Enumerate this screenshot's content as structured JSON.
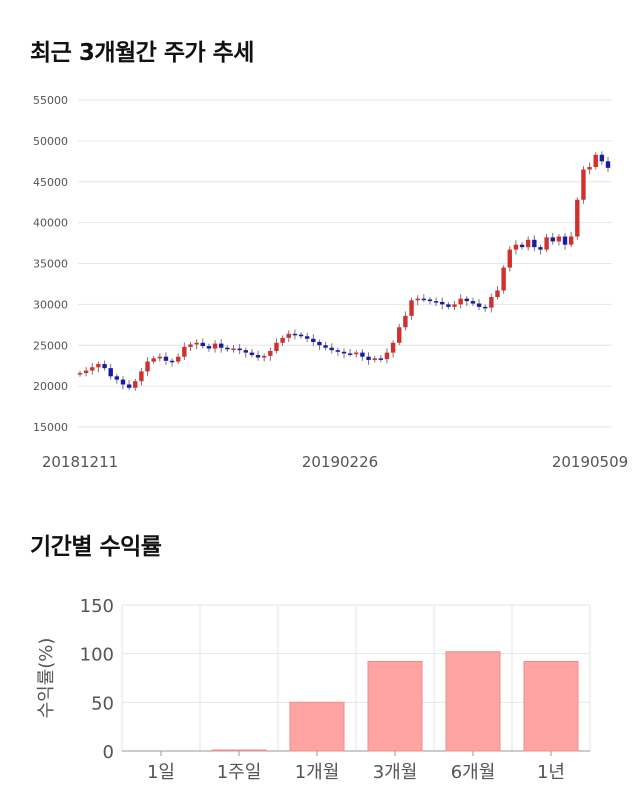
{
  "sections": {
    "price_title": "최근 3개월간 주가 추세",
    "return_title": "기간별 수익률"
  },
  "colors": {
    "up": "#d32f2f",
    "down": "#1a1aa8",
    "bar": "#ffa3a3",
    "bar_border": "#e88d8d",
    "grid": "#e6e6e6"
  },
  "chart_data": [
    {
      "type": "candlestick",
      "title": "최근 3개월간 주가 추세",
      "ylim": [
        15000,
        55000
      ],
      "y_ticks": [
        15000,
        20000,
        25000,
        30000,
        35000,
        40000,
        45000,
        50000,
        55000
      ],
      "x_tick_labels": [
        "20181211",
        "20190226",
        "20190509"
      ],
      "grid": true,
      "approx_close_series": [
        21600,
        21900,
        22300,
        22700,
        22200,
        21200,
        20800,
        20200,
        19800,
        20600,
        21800,
        23000,
        23400,
        23600,
        23100,
        23000,
        23600,
        24800,
        25100,
        25300,
        24900,
        24600,
        25200,
        24700,
        24500,
        24600,
        24400,
        24100,
        23800,
        23500,
        23700,
        24300,
        25300,
        25900,
        26400,
        26300,
        26100,
        25800,
        25400,
        25000,
        24700,
        24400,
        24200,
        24000,
        23900,
        24100,
        23600,
        23200,
        23400,
        23300,
        24100,
        25300,
        27200,
        28600,
        30500,
        30700,
        30600,
        30400,
        30300,
        30000,
        29700,
        30000,
        30700,
        30400,
        30100,
        29700,
        29600,
        30900,
        31700,
        34500,
        36700,
        37300,
        37000,
        37900,
        37000,
        36700,
        38200,
        37700,
        38300,
        37300,
        38300,
        42800,
        46500,
        46800,
        48300,
        47500,
        46700
      ]
    },
    {
      "type": "bar",
      "title": "기간별 수익률",
      "categories": [
        "1일",
        "1주일",
        "1개월",
        "3개월",
        "6개월",
        "1년"
      ],
      "values": [
        0,
        1,
        50,
        92,
        102,
        92
      ],
      "ylabel": "수익률(%)",
      "ylim": [
        0,
        150
      ],
      "y_ticks": [
        0,
        50,
        100,
        150
      ],
      "grid": true
    }
  ]
}
